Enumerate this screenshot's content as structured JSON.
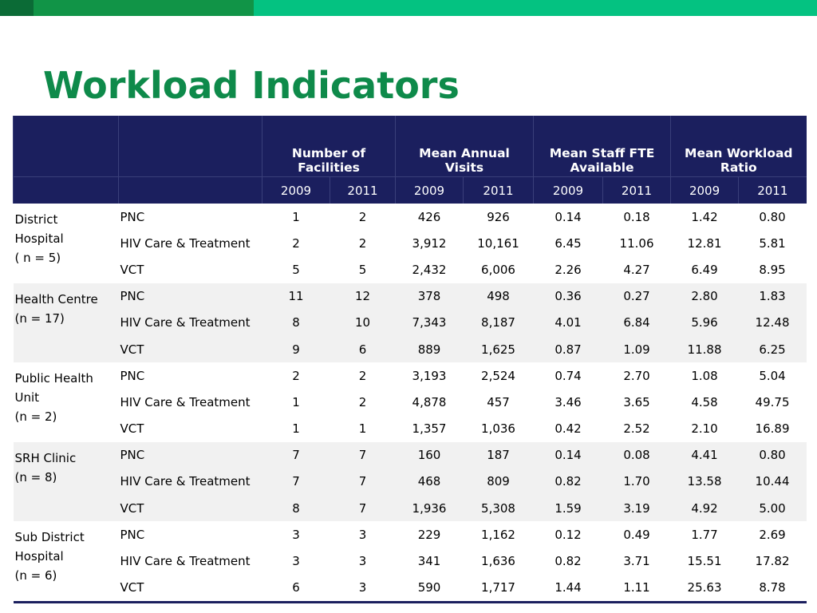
{
  "title": "Workload Indicators",
  "table": {
    "header_groups": [
      "Number of Facilities",
      "Mean Annual Visits",
      "Mean Staff FTE Available",
      "Mean Workload Ratio"
    ],
    "years": [
      "2009",
      "2011",
      "2009",
      "2011",
      "2009",
      "2011",
      "2009",
      "2011"
    ],
    "groups": [
      {
        "facility": "District\nHospital\n( n = 5)",
        "rows": [
          {
            "service": "PNC",
            "values": [
              "1",
              "2",
              "426",
              "926",
              "0.14",
              "0.18",
              "1.42",
              "0.80"
            ]
          },
          {
            "service": "HIV Care & Treatment",
            "values": [
              "2",
              "2",
              "3,912",
              "10,161",
              "6.45",
              "11.06",
              "12.81",
              "5.81"
            ]
          },
          {
            "service": "VCT",
            "values": [
              "5",
              "5",
              "2,432",
              "6,006",
              "2.26",
              "4.27",
              "6.49",
              "8.95"
            ]
          }
        ]
      },
      {
        "facility": "Health Centre\n(n = 17)",
        "rows": [
          {
            "service": "PNC",
            "values": [
              "11",
              "12",
              "378",
              "498",
              "0.36",
              "0.27",
              "2.80",
              "1.83"
            ]
          },
          {
            "service": "HIV Care & Treatment",
            "values": [
              "8",
              "10",
              "7,343",
              "8,187",
              "4.01",
              "6.84",
              "5.96",
              "12.48"
            ]
          },
          {
            "service": "VCT",
            "values": [
              "9",
              "6",
              "889",
              "1,625",
              "0.87",
              "1.09",
              "11.88",
              "6.25"
            ]
          }
        ]
      },
      {
        "facility": "Public Health\nUnit\n(n = 2)",
        "rows": [
          {
            "service": "PNC",
            "values": [
              "2",
              "2",
              "3,193",
              "2,524",
              "0.74",
              "2.70",
              "1.08",
              "5.04"
            ]
          },
          {
            "service": "HIV Care & Treatment",
            "values": [
              "1",
              "2",
              "4,878",
              "457",
              "3.46",
              "3.65",
              "4.58",
              "49.75"
            ]
          },
          {
            "service": "VCT",
            "values": [
              "1",
              "1",
              "1,357",
              "1,036",
              "0.42",
              "2.52",
              "2.10",
              "16.89"
            ]
          }
        ]
      },
      {
        "facility": "SRH Clinic\n(n = 8)",
        "rows": [
          {
            "service": "PNC",
            "values": [
              "7",
              "7",
              "160",
              "187",
              "0.14",
              "0.08",
              "4.41",
              "0.80"
            ]
          },
          {
            "service": "HIV Care & Treatment",
            "values": [
              "7",
              "7",
              "468",
              "809",
              "0.82",
              "1.70",
              "13.58",
              "10.44"
            ]
          },
          {
            "service": "VCT",
            "values": [
              "8",
              "7",
              "1,936",
              "5,308",
              "1.59",
              "3.19",
              "4.92",
              "5.00"
            ]
          }
        ]
      },
      {
        "facility": "Sub District\nHospital\n(n = 6)",
        "rows": [
          {
            "service": "PNC",
            "values": [
              "3",
              "3",
              "229",
              "1,162",
              "0.12",
              "0.49",
              "1.77",
              "2.69"
            ]
          },
          {
            "service": "HIV Care & Treatment",
            "values": [
              "3",
              "3",
              "341",
              "1,636",
              "0.82",
              "3.71",
              "15.51",
              "17.82"
            ]
          },
          {
            "service": "VCT",
            "values": [
              "6",
              "3",
              "590",
              "1,717",
              "1.44",
              "1.11",
              "25.63",
              "8.78"
            ]
          }
        ]
      }
    ]
  }
}
